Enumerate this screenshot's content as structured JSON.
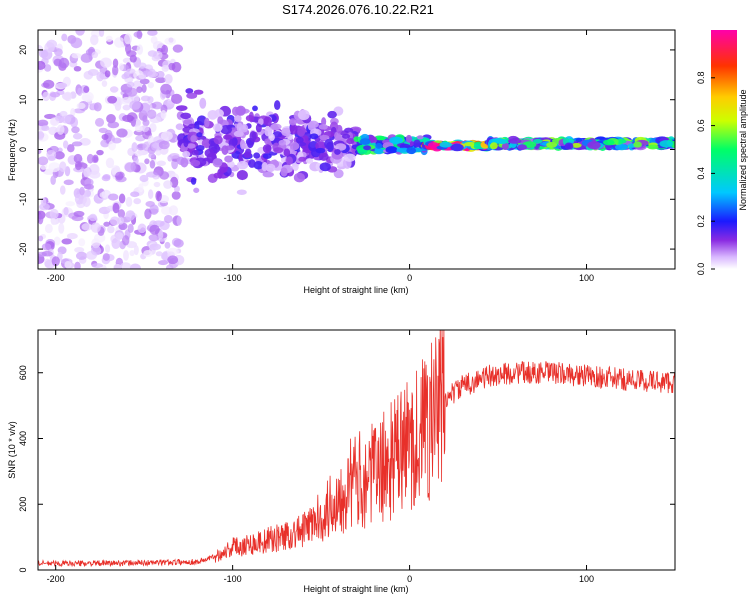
{
  "title": "S174.2026.076.10.22.R21",
  "colors": {
    "snr_line": "#e8302a",
    "spectrogram_low": "#9a3ff0",
    "spectrogram_mid": "#1ab0ff",
    "spectrogram_high": "#d61020"
  },
  "chart_data": [
    {
      "type": "heatmap",
      "xlabel": "Height of straight line (km)",
      "ylabel": "Frequency (Hz)",
      "xlim": [
        -210,
        150
      ],
      "ylim": [
        -24,
        24
      ],
      "x_ticks": [
        -200,
        -100,
        0,
        100
      ],
      "y_ticks": [
        -20,
        -10,
        0,
        10,
        20
      ],
      "colorbar": {
        "label": "Normalized spectral amplitude",
        "range": [
          0,
          1
        ],
        "ticks": [
          0.0,
          0.2,
          0.4,
          0.6,
          0.8
        ],
        "tick_labels": [
          "0.0",
          "0.2",
          "0.4",
          "0.6",
          "0.8"
        ],
        "colormap": [
          "#ffffff",
          "#d9b8ff",
          "#8a2be2",
          "#1a1aff",
          "#00c8ff",
          "#00ff66",
          "#ccff00",
          "#ffcc00",
          "#ff3300",
          "#ff00aa"
        ]
      },
      "regions": [
        {
          "x_range": [
            -210,
            -130
          ],
          "freq_spread": 24,
          "density": "scattered",
          "amplitude": 0.12
        },
        {
          "x_range": [
            -130,
            -30
          ],
          "freq_center": 3,
          "freq_spread": 10,
          "density": "dense",
          "amplitude": 0.25
        },
        {
          "x_range": [
            -30,
            10
          ],
          "freq_center": 1,
          "freq_spread": 3,
          "density": "band",
          "amplitude": 0.5
        },
        {
          "x_range": [
            10,
            45
          ],
          "freq_center": 0.8,
          "freq_spread": 1,
          "density": "band",
          "amplitude": 0.95
        },
        {
          "x_range": [
            45,
            150
          ],
          "freq_center": 1.2,
          "freq_spread": 1.5,
          "density": "band",
          "amplitude": 0.55
        }
      ]
    },
    {
      "type": "line",
      "xlabel": "Height of straight line (km)",
      "ylabel": "SNR (10 * v/v)",
      "xlim": [
        -210,
        150
      ],
      "ylim": [
        0,
        730
      ],
      "x_ticks": [
        -200,
        -100,
        0,
        100
      ],
      "y_ticks": [
        0,
        200,
        400,
        600
      ],
      "series": [
        {
          "name": "SNR",
          "x": [
            -210,
            -180,
            -150,
            -120,
            -110,
            -100,
            -80,
            -60,
            -45,
            -35,
            -25,
            -15,
            -5,
            5,
            15,
            20,
            30,
            45,
            60,
            80,
            100,
            120,
            150
          ],
          "values": [
            20,
            20,
            22,
            25,
            40,
            70,
            90,
            120,
            190,
            260,
            280,
            310,
            360,
            410,
            480,
            520,
            560,
            590,
            600,
            600,
            590,
            580,
            570
          ]
        }
      ]
    }
  ]
}
